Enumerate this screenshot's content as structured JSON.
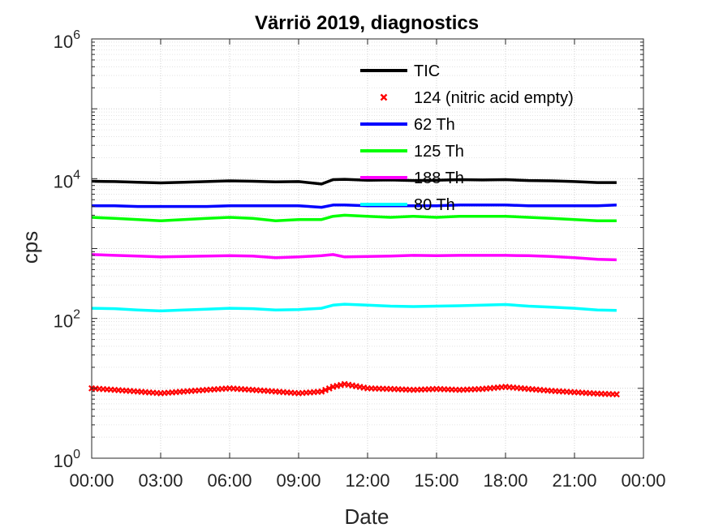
{
  "chart_data": {
    "type": "line",
    "title": "Värriö 2019, diagnostics",
    "xlabel": "Date",
    "ylabel": "cps",
    "y_scale": "log",
    "ylim": [
      1,
      1000000
    ],
    "xlim_hours": [
      0,
      24
    ],
    "x_tick_labels": [
      "00:00",
      "03:00",
      "06:00",
      "09:00",
      "12:00",
      "15:00",
      "18:00",
      "21:00",
      "00:00"
    ],
    "y_tick_labels": [
      {
        "base": "10",
        "exp": "0"
      },
      {
        "base": "10",
        "exp": "2"
      },
      {
        "base": "10",
        "exp": "4"
      },
      {
        "base": "10",
        "exp": "6"
      }
    ],
    "grid": true,
    "minor_grid": true,
    "legend_position": "top-right",
    "x_times": [
      "00:00",
      "01:00",
      "02:00",
      "03:00",
      "04:00",
      "05:00",
      "06:00",
      "07:00",
      "08:00",
      "09:00",
      "10:00",
      "10:30",
      "11:00",
      "12:00",
      "13:00",
      "14:00",
      "15:00",
      "16:00",
      "17:00",
      "18:00",
      "19:00",
      "20:00",
      "21:00",
      "22:00",
      "22:50"
    ],
    "series": [
      {
        "name": "TIC",
        "color": "#000000",
        "style": "line",
        "values": [
          9200,
          9100,
          8900,
          8700,
          8900,
          9100,
          9300,
          9200,
          9000,
          9100,
          8400,
          9700,
          9800,
          9500,
          9600,
          9400,
          9500,
          9700,
          9600,
          9700,
          9400,
          9300,
          9100,
          8800,
          8800
        ]
      },
      {
        "name": "124 (nitric acid empty)",
        "color": "#ff0000",
        "style": "markers",
        "values": [
          10,
          9.5,
          9,
          8.5,
          9,
          9.5,
          10,
          9.5,
          9,
          8.5,
          9,
          10.5,
          11.5,
          10,
          9.8,
          9.5,
          9.8,
          9.5,
          9.8,
          10.5,
          9.8,
          9.2,
          8.8,
          8.4,
          8.2
        ]
      },
      {
        "name": "62 Th",
        "color": "#0000ff",
        "style": "line",
        "values": [
          4100,
          4100,
          4000,
          4000,
          4000,
          4000,
          4100,
          4100,
          4100,
          4100,
          3900,
          4200,
          4200,
          4100,
          4100,
          4100,
          4100,
          4200,
          4200,
          4200,
          4100,
          4100,
          4100,
          4100,
          4200
        ]
      },
      {
        "name": "125 Th",
        "color": "#00ff00",
        "style": "line",
        "values": [
          2800,
          2700,
          2600,
          2500,
          2600,
          2700,
          2800,
          2700,
          2500,
          2600,
          2600,
          2900,
          3000,
          2900,
          2800,
          2900,
          2800,
          2900,
          2900,
          2900,
          2800,
          2700,
          2600,
          2500,
          2500
        ]
      },
      {
        "name": "188 Th",
        "color": "#ff00ff",
        "style": "line",
        "values": [
          820,
          800,
          780,
          760,
          770,
          780,
          790,
          780,
          740,
          760,
          790,
          820,
          760,
          770,
          780,
          800,
          790,
          800,
          800,
          800,
          790,
          770,
          740,
          700,
          690
        ]
      },
      {
        "name": "80 Th",
        "color": "#00ffff",
        "style": "line",
        "values": [
          140,
          138,
          132,
          128,
          132,
          136,
          140,
          138,
          132,
          134,
          140,
          155,
          160,
          155,
          150,
          148,
          150,
          152,
          155,
          158,
          150,
          145,
          140,
          132,
          130
        ]
      }
    ]
  }
}
